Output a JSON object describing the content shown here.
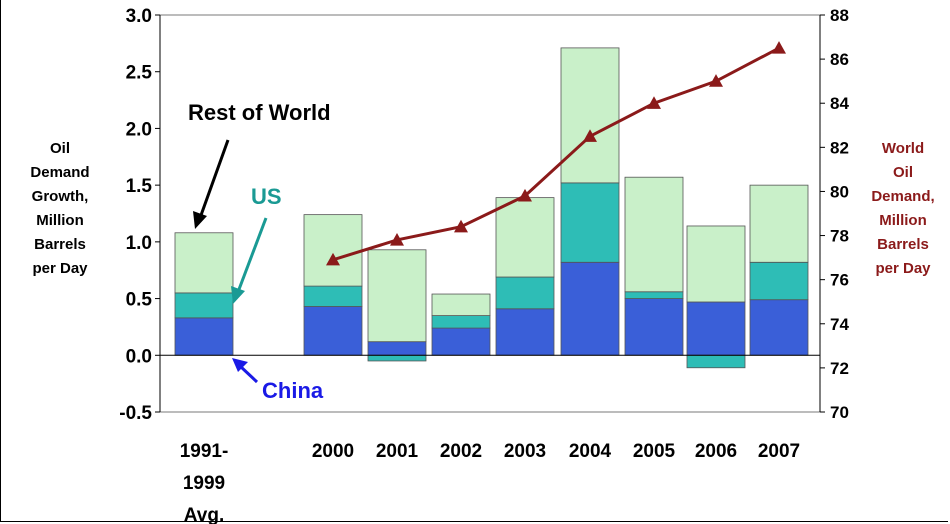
{
  "chart_data": {
    "type": "bar",
    "stacked": true,
    "categories": [
      [
        "1991-",
        "1999",
        "Avg."
      ],
      [
        "2000"
      ],
      [
        "2001"
      ],
      [
        "2002"
      ],
      [
        "2003"
      ],
      [
        "2004"
      ],
      [
        "2005"
      ],
      [
        "2006"
      ],
      [
        "2007"
      ]
    ],
    "series": [
      {
        "name": "China",
        "color": "#3a5fd8",
        "values": [
          0.33,
          0.43,
          0.12,
          0.24,
          0.41,
          0.82,
          0.5,
          0.47,
          0.49
        ]
      },
      {
        "name": "US",
        "color": "#2ebdb6",
        "values": [
          0.22,
          0.18,
          -0.05,
          0.11,
          0.28,
          0.7,
          0.06,
          -0.11,
          0.33
        ]
      },
      {
        "name": "Rest of World",
        "color": "#c9f0c9",
        "values": [
          0.53,
          0.63,
          0.81,
          0.19,
          0.7,
          1.19,
          1.01,
          0.67,
          0.68
        ]
      }
    ],
    "line_series": {
      "color": "#8b1a1a",
      "marker": "triangle",
      "axis": "right",
      "values": [
        null,
        76.9,
        77.8,
        78.4,
        79.8,
        82.5,
        84.0,
        85.0,
        86.5
      ]
    },
    "left_axis": {
      "ylim": [
        -0.5,
        3.0
      ],
      "ticks": [
        "3.0",
        "2.5",
        "2.0",
        "1.5",
        "1.0",
        "0.5",
        "0.0",
        "-0.5"
      ],
      "label": [
        "Oil",
        "Demand",
        "Growth,",
        "Million",
        "Barrels",
        "per Day"
      ]
    },
    "right_axis": {
      "ylim": [
        70,
        88
      ],
      "ticks": [
        "88",
        "86",
        "84",
        "82",
        "80",
        "78",
        "76",
        "74",
        "72",
        "70"
      ],
      "label": [
        "World",
        "Oil",
        "Demand,",
        "Million",
        "Barrels",
        "per Day"
      ],
      "label_color": "#8b1a1a"
    },
    "annotations": {
      "rest_of_world": {
        "text": "Rest of World",
        "color": "#000000"
      },
      "us": {
        "text": "US",
        "color": "#1a9a94"
      },
      "china": {
        "text": "China",
        "color": "#1a1ae6"
      }
    },
    "legend": "none",
    "grid": false
  }
}
